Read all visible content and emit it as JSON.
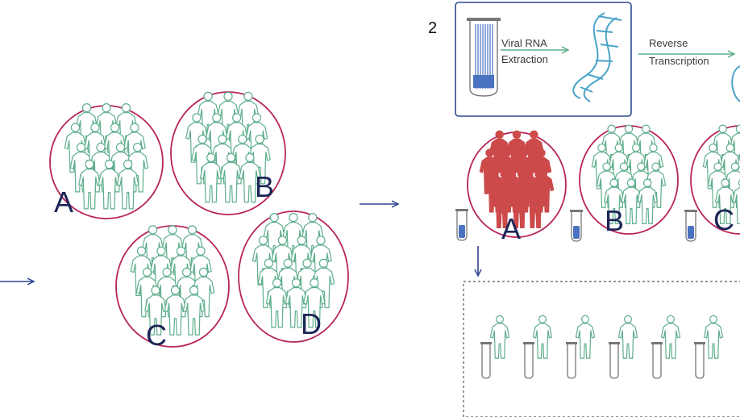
{
  "step_number": "2",
  "process": {
    "extraction_label_line1": "Viral RNA",
    "extraction_label_line2": "Extraction",
    "rt_label_line1": "Reverse",
    "rt_label_line2": "Transcription"
  },
  "left_pools": [
    {
      "letter": "A"
    },
    {
      "letter": "B"
    },
    {
      "letter": "C"
    },
    {
      "letter": "D"
    }
  ],
  "right_pools": [
    {
      "letter": "A",
      "status": "positive"
    },
    {
      "letter": "B",
      "status": "negative"
    },
    {
      "letter": "C",
      "status": "negative"
    }
  ],
  "individual_retest_count": 6,
  "colors": {
    "pool_ring": "#b8245a",
    "person_outline": "#5fae8c",
    "positive_fill": "#cc4a4a",
    "arrow": "#2e4590",
    "dna": "#4aa3c8",
    "tube_liquid": "#4a72c0",
    "letter": "#1b2557",
    "box_border": "#2e4a8c",
    "dashed_border": "#555555"
  },
  "icons": {
    "person": "person-outline-icon",
    "tube": "test-tube-icon",
    "dna": "rna-strand-icon",
    "arrow": "arrow-icon"
  }
}
